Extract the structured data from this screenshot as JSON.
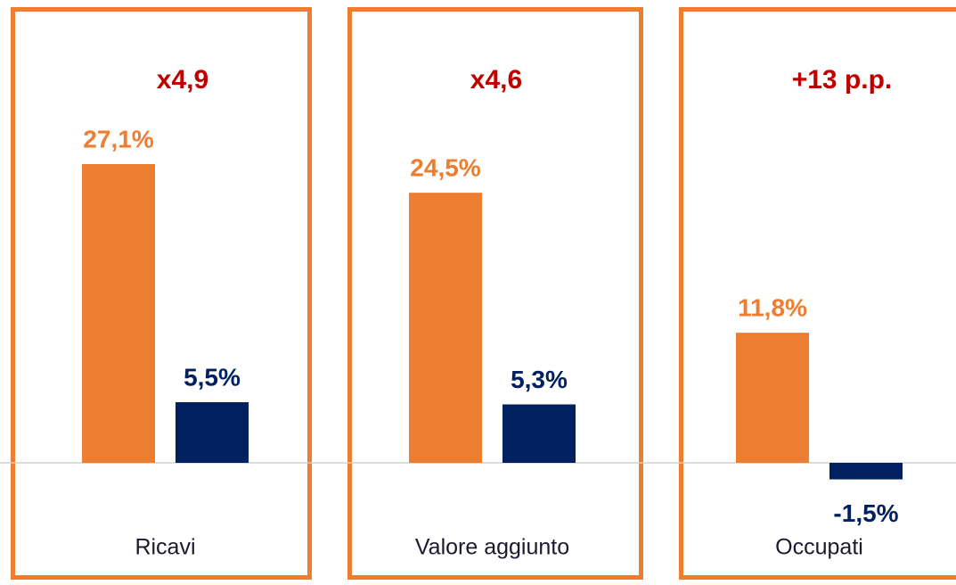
{
  "chart_data": {
    "type": "bar",
    "categories": [
      "Ricavi",
      "Valore aggiunto",
      "Occupati"
    ],
    "annotations": [
      "x4,9",
      "x4,6",
      "+13 p.p."
    ],
    "series": [
      {
        "color": "#ed7d31",
        "values": [
          27.1,
          24.5,
          11.8
        ],
        "value_labels": [
          "27,1%",
          "24,5%",
          "11,8%"
        ]
      },
      {
        "color": "#002060",
        "values": [
          5.5,
          5.3,
          -1.5
        ],
        "value_labels": [
          "5,5%",
          "5,3%",
          "-1,5%"
        ]
      }
    ],
    "annotation_color": "#c00000"
  }
}
